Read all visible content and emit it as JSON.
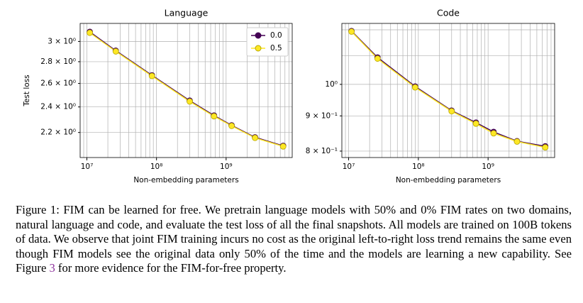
{
  "chart_data": [
    {
      "type": "line",
      "title": "Language",
      "x_label": "Non-embedding parameters",
      "y_label": "Test loss",
      "xscale": "log",
      "yscale": "log",
      "grid": true,
      "legend": "upper right",
      "x": [
        11000000,
        26000000,
        86000000,
        300000000,
        670000000,
        1200000000,
        2600000000,
        6600000000
      ],
      "series": [
        {
          "name": "0.0",
          "color": "#440154",
          "values": [
            3.1,
            2.907,
            2.673,
            2.452,
            2.331,
            2.254,
            2.164,
            2.102
          ]
        },
        {
          "name": "0.5",
          "color": "#fde725",
          "values": [
            3.09,
            2.9,
            2.667,
            2.445,
            2.325,
            2.25,
            2.16,
            2.098
          ]
        }
      ],
      "xlim": [
        8000000,
        8900000000
      ],
      "xticks": [
        {
          "value": 10000000,
          "label": "10⁷"
        },
        {
          "value": 100000000,
          "label": "10⁸"
        },
        {
          "value": 1000000000,
          "label": "10⁹"
        }
      ],
      "xminorticks": [
        9000000,
        20000000,
        30000000,
        40000000,
        50000000,
        60000000,
        70000000,
        80000000,
        90000000,
        200000000,
        300000000,
        400000000,
        500000000,
        600000000,
        700000000,
        800000000,
        900000000,
        2000000000,
        3000000000,
        4000000000,
        5000000000,
        6000000000,
        7000000000,
        8000000000
      ],
      "ylim": [
        2.02,
        3.19
      ],
      "yticks": [
        {
          "value": 2.2,
          "label": "2.2 × 10⁰"
        },
        {
          "value": 2.4,
          "label": "2.4 × 10⁰"
        },
        {
          "value": 2.6,
          "label": "2.6 × 10⁰"
        },
        {
          "value": 2.8,
          "label": "2.8 × 10⁰"
        },
        {
          "value": 3,
          "label": "3 × 10⁰"
        }
      ],
      "yminorticks": []
    },
    {
      "type": "line",
      "title": "Code",
      "x_label": "Non-embedding parameters",
      "xscale": "log",
      "yscale": "log",
      "grid": true,
      "x": [
        11000000,
        26000000,
        90000000,
        300000000,
        670000000,
        1200000000,
        2600000000,
        6600000000
      ],
      "series": [
        {
          "name": "0.0",
          "color": "#440154",
          "values": [
            1.195,
            1.094,
            0.993,
            0.916,
            0.88,
            0.853,
            0.827,
            0.813
          ]
        },
        {
          "name": "0.5",
          "color": "#fde725",
          "values": [
            1.193,
            1.09,
            0.99,
            0.914,
            0.877,
            0.849,
            0.826,
            0.81
          ]
        }
      ],
      "xlim": [
        8000000,
        9000000000
      ],
      "xticks": [
        {
          "value": 10000000,
          "label": "10⁷"
        },
        {
          "value": 100000000,
          "label": "10⁸"
        },
        {
          "value": 1000000000,
          "label": "10⁹"
        }
      ],
      "xminorticks": [
        9000000,
        20000000,
        30000000,
        40000000,
        50000000,
        60000000,
        70000000,
        80000000,
        90000000,
        200000000,
        300000000,
        400000000,
        500000000,
        600000000,
        700000000,
        800000000,
        900000000,
        2000000000,
        3000000000,
        4000000000,
        5000000000,
        6000000000,
        7000000000,
        8000000000
      ],
      "ylim": [
        0.783,
        1.226
      ],
      "yticks": [
        {
          "value": 0.8,
          "label": "8 × 10⁻¹"
        },
        {
          "value": 0.9,
          "label": "9 × 10⁻¹"
        },
        {
          "value": 1,
          "label": "10⁰"
        }
      ],
      "yminorticks": [
        1.1,
        1.2
      ]
    }
  ],
  "caption": {
    "text": "Figure 1: FIM can be learned for free. We pretrain language models with 50% and 0% FIM rates on two domains, natural language and code, and evaluate the test loss of all the final snapshots. All models are trained on 100B tokens of data. We observe that joint FIM training incurs no cost as the original left-to-right loss trend remains the same even though FIM models see the original data only 50% of the time and the models are learning a new capability. See Figure ",
    "link": "3",
    "tail": " for more evidence for the FIM-for-free property."
  }
}
